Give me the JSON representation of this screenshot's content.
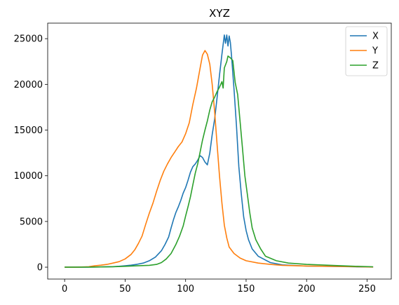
{
  "chart_data": {
    "type": "line",
    "title": "XYZ",
    "xlabel": "",
    "ylabel": "",
    "xlim": [
      -14,
      270
    ],
    "ylim": [
      -1300,
      26700
    ],
    "xticks": [
      0,
      50,
      100,
      150,
      200,
      250
    ],
    "yticks": [
      0,
      5000,
      10000,
      15000,
      20000,
      25000
    ],
    "grid": false,
    "legend_position": "top-right",
    "series": [
      {
        "name": "X",
        "color": "#1f77b4",
        "points": [
          [
            0,
            0
          ],
          [
            10,
            0
          ],
          [
            20,
            10
          ],
          [
            30,
            30
          ],
          [
            40,
            60
          ],
          [
            45,
            100
          ],
          [
            50,
            160
          ],
          [
            55,
            220
          ],
          [
            60,
            320
          ],
          [
            65,
            450
          ],
          [
            70,
            700
          ],
          [
            75,
            1100
          ],
          [
            80,
            1800
          ],
          [
            83,
            2500
          ],
          [
            86,
            3300
          ],
          [
            88,
            4300
          ],
          [
            90,
            5200
          ],
          [
            92,
            6000
          ],
          [
            94,
            6600
          ],
          [
            96,
            7300
          ],
          [
            98,
            8100
          ],
          [
            100,
            8700
          ],
          [
            102,
            9500
          ],
          [
            104,
            10400
          ],
          [
            106,
            11000
          ],
          [
            108,
            11300
          ],
          [
            110,
            11700
          ],
          [
            112,
            12200
          ],
          [
            114,
            12000
          ],
          [
            116,
            11500
          ],
          [
            118,
            11200
          ],
          [
            120,
            12500
          ],
          [
            122,
            14500
          ],
          [
            124,
            16200
          ],
          [
            126,
            18500
          ],
          [
            128,
            21000
          ],
          [
            130,
            23300
          ],
          [
            132,
            25400
          ],
          [
            133,
            24500
          ],
          [
            134,
            25400
          ],
          [
            135,
            24200
          ],
          [
            136,
            25300
          ],
          [
            137,
            24600
          ],
          [
            138,
            23000
          ],
          [
            140,
            19500
          ],
          [
            142,
            15500
          ],
          [
            144,
            11000
          ],
          [
            146,
            8000
          ],
          [
            148,
            5500
          ],
          [
            150,
            4000
          ],
          [
            152,
            3000
          ],
          [
            155,
            2000
          ],
          [
            160,
            1200
          ],
          [
            170,
            500
          ],
          [
            180,
            250
          ],
          [
            200,
            120
          ],
          [
            220,
            80
          ],
          [
            240,
            40
          ],
          [
            255,
            20
          ]
        ]
      },
      {
        "name": "Y",
        "color": "#ff7f0e",
        "points": [
          [
            0,
            0
          ],
          [
            10,
            0
          ],
          [
            20,
            50
          ],
          [
            25,
            150
          ],
          [
            30,
            220
          ],
          [
            35,
            300
          ],
          [
            40,
            450
          ],
          [
            45,
            600
          ],
          [
            50,
            900
          ],
          [
            55,
            1400
          ],
          [
            58,
            1900
          ],
          [
            61,
            2600
          ],
          [
            64,
            3400
          ],
          [
            67,
            4700
          ],
          [
            70,
            5900
          ],
          [
            73,
            7000
          ],
          [
            76,
            8300
          ],
          [
            79,
            9500
          ],
          [
            82,
            10500
          ],
          [
            85,
            11300
          ],
          [
            88,
            12000
          ],
          [
            91,
            12600
          ],
          [
            94,
            13200
          ],
          [
            97,
            13700
          ],
          [
            100,
            14600
          ],
          [
            103,
            15800
          ],
          [
            106,
            17800
          ],
          [
            109,
            19600
          ],
          [
            112,
            21800
          ],
          [
            114,
            23200
          ],
          [
            116,
            23700
          ],
          [
            118,
            23300
          ],
          [
            120,
            22200
          ],
          [
            122,
            20000
          ],
          [
            124,
            17000
          ],
          [
            126,
            13500
          ],
          [
            128,
            10000
          ],
          [
            130,
            7000
          ],
          [
            132,
            4600
          ],
          [
            134,
            3200
          ],
          [
            136,
            2200
          ],
          [
            140,
            1500
          ],
          [
            145,
            1000
          ],
          [
            150,
            700
          ],
          [
            160,
            450
          ],
          [
            170,
            300
          ],
          [
            180,
            200
          ],
          [
            200,
            130
          ],
          [
            220,
            100
          ],
          [
            240,
            60
          ],
          [
            255,
            20
          ]
        ]
      },
      {
        "name": "Z",
        "color": "#2ca02c",
        "points": [
          [
            0,
            0
          ],
          [
            20,
            10
          ],
          [
            40,
            50
          ],
          [
            50,
            100
          ],
          [
            60,
            150
          ],
          [
            70,
            200
          ],
          [
            76,
            300
          ],
          [
            80,
            500
          ],
          [
            84,
            900
          ],
          [
            88,
            1500
          ],
          [
            92,
            2500
          ],
          [
            95,
            3400
          ],
          [
            98,
            4500
          ],
          [
            100,
            5600
          ],
          [
            102,
            6600
          ],
          [
            104,
            7700
          ],
          [
            106,
            9000
          ],
          [
            108,
            10300
          ],
          [
            110,
            11300
          ],
          [
            112,
            12600
          ],
          [
            114,
            13900
          ],
          [
            116,
            15000
          ],
          [
            118,
            16000
          ],
          [
            120,
            17200
          ],
          [
            122,
            18100
          ],
          [
            124,
            18600
          ],
          [
            126,
            19200
          ],
          [
            128,
            19700
          ],
          [
            130,
            20300
          ],
          [
            131,
            19600
          ],
          [
            132,
            21800
          ],
          [
            134,
            22500
          ],
          [
            135,
            23100
          ],
          [
            137,
            22900
          ],
          [
            139,
            22600
          ],
          [
            141,
            20200
          ],
          [
            143,
            18900
          ],
          [
            145,
            16000
          ],
          [
            147,
            13000
          ],
          [
            149,
            10000
          ],
          [
            151,
            8000
          ],
          [
            153,
            6000
          ],
          [
            155,
            4300
          ],
          [
            158,
            3000
          ],
          [
            162,
            2000
          ],
          [
            166,
            1200
          ],
          [
            175,
            700
          ],
          [
            185,
            450
          ],
          [
            200,
            300
          ],
          [
            220,
            200
          ],
          [
            240,
            100
          ],
          [
            255,
            40
          ]
        ]
      }
    ]
  }
}
